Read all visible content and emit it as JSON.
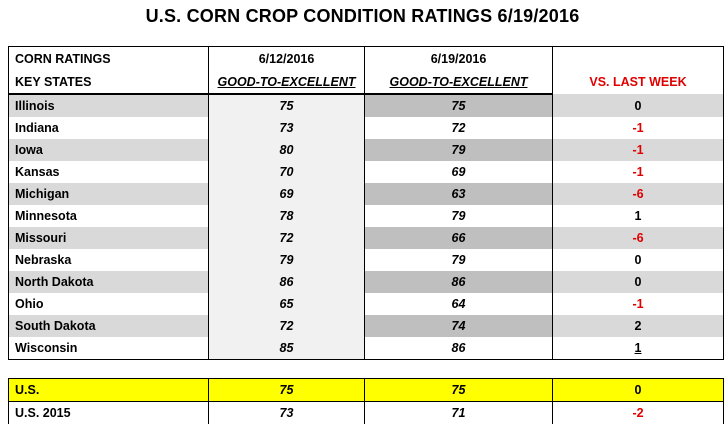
{
  "title": "U.S. CORN CROP CONDITION RATINGS 6/19/2016",
  "header": {
    "row1": [
      "CORN RATINGS",
      "6/12/2016",
      "6/19/2016",
      ""
    ],
    "row2": [
      "KEY STATES",
      "GOOD-TO-EXCELLENT",
      "GOOD-TO-EXCELLENT",
      "VS. LAST WEEK"
    ]
  },
  "rows": [
    {
      "state": "Illinois",
      "prev": "75",
      "curr": "75",
      "change": "0"
    },
    {
      "state": "Indiana",
      "prev": "73",
      "curr": "72",
      "change": "-1"
    },
    {
      "state": "Iowa",
      "prev": "80",
      "curr": "79",
      "change": "-1"
    },
    {
      "state": "Kansas",
      "prev": "70",
      "curr": "69",
      "change": "-1"
    },
    {
      "state": "Michigan",
      "prev": "69",
      "curr": "63",
      "change": "-6"
    },
    {
      "state": "Minnesota",
      "prev": "78",
      "curr": "79",
      "change": "1"
    },
    {
      "state": "Missouri",
      "prev": "72",
      "curr": "66",
      "change": "-6"
    },
    {
      "state": "Nebraska",
      "prev": "79",
      "curr": "79",
      "change": "0"
    },
    {
      "state": "North Dakota",
      "prev": "86",
      "curr": "86",
      "change": "0"
    },
    {
      "state": "Ohio",
      "prev": "65",
      "curr": "64",
      "change": "-1"
    },
    {
      "state": "South Dakota",
      "prev": "72",
      "curr": "74",
      "change": "2"
    },
    {
      "state": "Wisconsin",
      "prev": "85",
      "curr": "86",
      "change": "1"
    }
  ],
  "us": {
    "label": "U.S.",
    "prev": "75",
    "curr": "75",
    "change": "0"
  },
  "us2015": {
    "label": "U.S. 2015",
    "prev": "73",
    "curr": "71",
    "change": "-2"
  },
  "colors": {
    "negative": "#e00000",
    "highlight": "#ffff00"
  }
}
